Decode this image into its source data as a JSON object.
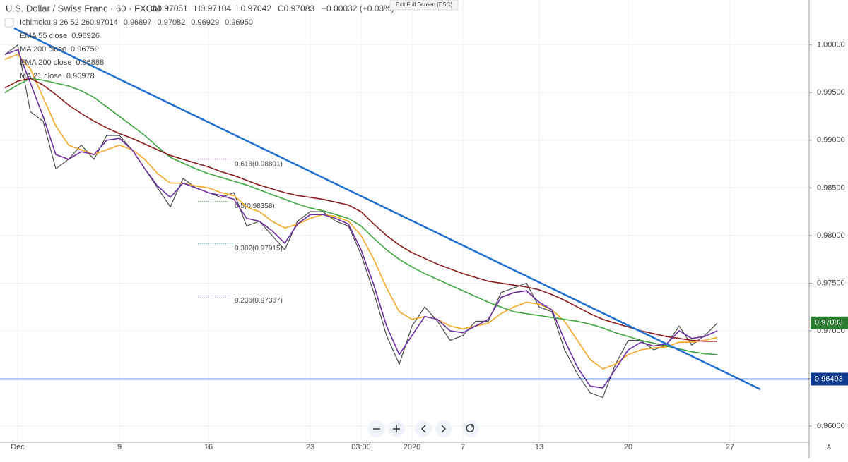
{
  "header": {
    "symbol": "U.S. Dollar / Swiss Franc · 60 · FXCM",
    "open": "O0.97051",
    "high": "H0.97104",
    "low": "L0.97042",
    "close": "C0.97083",
    "change": "+0.00032 (+0.03%)",
    "exit_button": "Exit Full Screen (ESC)"
  },
  "ichimoku": {
    "name": "Ichimoku 9 26 52 26",
    "values": [
      "0.97014",
      "0.96897",
      "0.97082",
      "0.96929",
      "0.96950"
    ]
  },
  "chart_data": {
    "type": "line",
    "categories": [
      null,
      "Dec",
      null,
      null,
      null,
      null,
      null,
      null,
      null,
      "9",
      null,
      null,
      null,
      null,
      null,
      null,
      "16",
      null,
      null,
      null,
      null,
      null,
      null,
      null,
      "23",
      null,
      null,
      null,
      "03:00",
      null,
      null,
      null,
      "2020",
      null,
      null,
      null,
      "7",
      null,
      null,
      null,
      null,
      null,
      "13",
      null,
      null,
      null,
      null,
      null,
      null,
      "20",
      null,
      null,
      null,
      null,
      null,
      null,
      null,
      "27"
    ],
    "series": [
      {
        "name": "Price",
        "color": "#4a4a4a",
        "values": [
          0.999,
          1.0,
          0.993,
          0.992,
          0.987,
          0.988,
          0.9895,
          0.988,
          0.9905,
          0.9905,
          0.989,
          0.987,
          0.985,
          0.983,
          0.986,
          0.985,
          0.9845,
          0.984,
          0.9845,
          0.981,
          0.9815,
          0.98,
          0.9785,
          0.9815,
          0.9825,
          0.9825,
          0.9815,
          0.981,
          0.978,
          0.974,
          0.9695,
          0.9665,
          0.9705,
          0.9725,
          0.971,
          0.969,
          0.9695,
          0.971,
          0.971,
          0.974,
          0.9745,
          0.975,
          0.9725,
          0.972,
          0.968,
          0.9655,
          0.9635,
          0.963,
          0.9665,
          0.969,
          0.969,
          0.968,
          0.9685,
          0.9705,
          0.9685,
          0.9695,
          0.9708,
          null
        ]
      },
      {
        "name": "EMA 55 close",
        "legend_value": "0.96926",
        "color": "#f5a623",
        "values": [
          0.9985,
          0.999,
          0.9975,
          0.9945,
          0.9915,
          0.9895,
          0.989,
          0.9885,
          0.989,
          0.9895,
          0.989,
          0.988,
          0.9865,
          0.9855,
          0.9855,
          0.9852,
          0.985,
          0.9845,
          0.9842,
          0.983,
          0.9825,
          0.9815,
          0.9808,
          0.9812,
          0.9818,
          0.9822,
          0.982,
          0.9815,
          0.98,
          0.9775,
          0.9745,
          0.972,
          0.9712,
          0.9715,
          0.9712,
          0.9705,
          0.9702,
          0.9705,
          0.9708,
          0.9718,
          0.9725,
          0.973,
          0.9728,
          0.9722,
          0.971,
          0.969,
          0.967,
          0.966,
          0.9665,
          0.9675,
          0.968,
          0.9682,
          0.9683,
          0.9688,
          0.9688,
          0.969,
          0.9693,
          null
        ]
      },
      {
        "name": "MA 200 close",
        "legend_value": "0.96759",
        "color": "#3da53d",
        "values": [
          0.995,
          0.9958,
          0.9965,
          0.9963,
          0.996,
          0.9957,
          0.9952,
          0.9945,
          0.9935,
          0.9925,
          0.9915,
          0.9905,
          0.9893,
          0.9882,
          0.9876,
          0.987,
          0.9865,
          0.9861,
          0.9857,
          0.9853,
          0.9848,
          0.9843,
          0.9838,
          0.9833,
          0.9829,
          0.9826,
          0.9822,
          0.9818,
          0.981,
          0.9797,
          0.9785,
          0.9775,
          0.9767,
          0.976,
          0.9754,
          0.9748,
          0.9742,
          0.9736,
          0.973,
          0.9725,
          0.972,
          0.9718,
          0.9716,
          0.9714,
          0.9712,
          0.971,
          0.9707,
          0.9703,
          0.9698,
          0.9694,
          0.969,
          0.9687,
          0.9684,
          0.9681,
          0.9678,
          0.9676,
          0.9675,
          null
        ]
      },
      {
        "name": "EMA 200 close",
        "legend_value": "0.96888",
        "color": "#8b1a1a",
        "values": [
          0.9955,
          0.9962,
          0.9965,
          0.9958,
          0.9948,
          0.9937,
          0.9928,
          0.992,
          0.9913,
          0.9907,
          0.9902,
          0.9896,
          0.989,
          0.9884,
          0.988,
          0.9876,
          0.9872,
          0.9867,
          0.9863,
          0.9858,
          0.9853,
          0.9849,
          0.9845,
          0.9842,
          0.984,
          0.9838,
          0.9835,
          0.9832,
          0.9825,
          0.9812,
          0.98,
          0.979,
          0.9782,
          0.9776,
          0.977,
          0.9765,
          0.976,
          0.9756,
          0.9752,
          0.975,
          0.9748,
          0.9746,
          0.9743,
          0.9738,
          0.9732,
          0.9725,
          0.9718,
          0.9712,
          0.9708,
          0.9704,
          0.97,
          0.9697,
          0.9694,
          0.9692,
          0.969,
          0.9689,
          0.9689,
          null
        ]
      },
      {
        "name": "MA 21 close",
        "legend_value": "0.96978",
        "color": "#6a2fa0",
        "values": [
          0.999,
          0.9995,
          0.996,
          0.9925,
          0.9885,
          0.988,
          0.9888,
          0.9885,
          0.99,
          0.9902,
          0.989,
          0.987,
          0.9852,
          0.984,
          0.9855,
          0.985,
          0.9845,
          0.9842,
          0.9838,
          0.9818,
          0.9815,
          0.9805,
          0.9792,
          0.9812,
          0.9822,
          0.9822,
          0.9818,
          0.9812,
          0.9785,
          0.9748,
          0.9705,
          0.9675,
          0.9695,
          0.9715,
          0.9712,
          0.97,
          0.9698,
          0.9705,
          0.9712,
          0.9735,
          0.974,
          0.9742,
          0.973,
          0.9722,
          0.969,
          0.9662,
          0.9642,
          0.964,
          0.966,
          0.968,
          0.9688,
          0.9684,
          0.9686,
          0.97,
          0.9692,
          0.9694,
          0.97,
          null
        ]
      }
    ],
    "ylim": [
      0.95845,
      1.00472
    ],
    "yticks": [
      {
        "value": 0.96,
        "label": "0.96000"
      },
      {
        "value": 0.965,
        "label": "0.96500"
      },
      {
        "value": 0.97,
        "label": "0.97000"
      },
      {
        "value": 0.975,
        "label": "0.97500"
      },
      {
        "value": 0.98,
        "label": "0.98000"
      },
      {
        "value": 0.985,
        "label": "0.98500"
      },
      {
        "value": 0.99,
        "label": "0.99000"
      },
      {
        "value": 0.995,
        "label": "0.99500"
      },
      {
        "value": 1.0,
        "label": "1.00000"
      }
    ],
    "grid": true,
    "hline": {
      "value": 0.96493,
      "label": "0.96493",
      "color": "#0d3a8c"
    },
    "last_price": {
      "value": 0.97083,
      "label": "0.97083",
      "color": "#2e7d32"
    },
    "fib_levels": [
      {
        "value": 0.98801,
        "label": "0.618(0.98801)",
        "color": "#e040fb"
      },
      {
        "value": 0.98358,
        "label": "0.5(0.98358)",
        "color": "#4caf50"
      },
      {
        "value": 0.97915,
        "label": "0.382(0.97915)",
        "color": "#00bcd4"
      },
      {
        "value": 0.97367,
        "label": "0.236(0.97367)",
        "color": "#7e57c2"
      }
    ]
  },
  "footer": {
    "corner": "A"
  }
}
